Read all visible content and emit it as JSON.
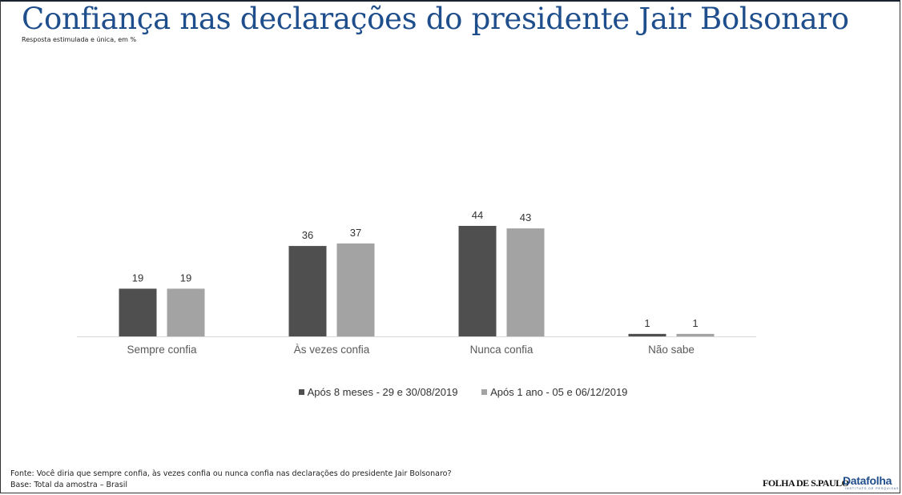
{
  "header": {
    "title": "Confiança nas declarações do presidente Jair Bolsonaro",
    "subtitle": "Resposta estimulada e única, em %"
  },
  "chart_data": {
    "type": "bar",
    "title": "Confiança nas declarações do presidente Jair Bolsonaro",
    "subtitle": "Resposta estimulada e única, em %",
    "categories": [
      "Sempre confia",
      "Às vezes confia",
      "Nunca confia",
      "Não sabe"
    ],
    "series": [
      {
        "name": "Após 8 meses - 29 e 30/08/2019",
        "color": "#4f4f4f",
        "values": [
          19,
          36,
          44,
          1
        ]
      },
      {
        "name": "Após 1 ano - 05 e 06/12/2019",
        "color": "#a3a3a3",
        "values": [
          19,
          37,
          43,
          1
        ]
      }
    ],
    "xlabel": "",
    "ylabel": "",
    "ylim": [
      0,
      50
    ],
    "grid": false,
    "data_labels": true,
    "legend_position": "bottom"
  },
  "footer": {
    "source": "Fonte: Você diria que sempre confia, às vezes confia ou nunca confia nas declarações do presidente Jair Bolsonaro?",
    "base": "Base: Total da amostra – Brasil"
  },
  "logos": {
    "folha": "FOLHA DE S.PAULO",
    "datafolha": "Datafolha",
    "datafolha_sub": "INSTITUTO DE PESQUISAS"
  }
}
